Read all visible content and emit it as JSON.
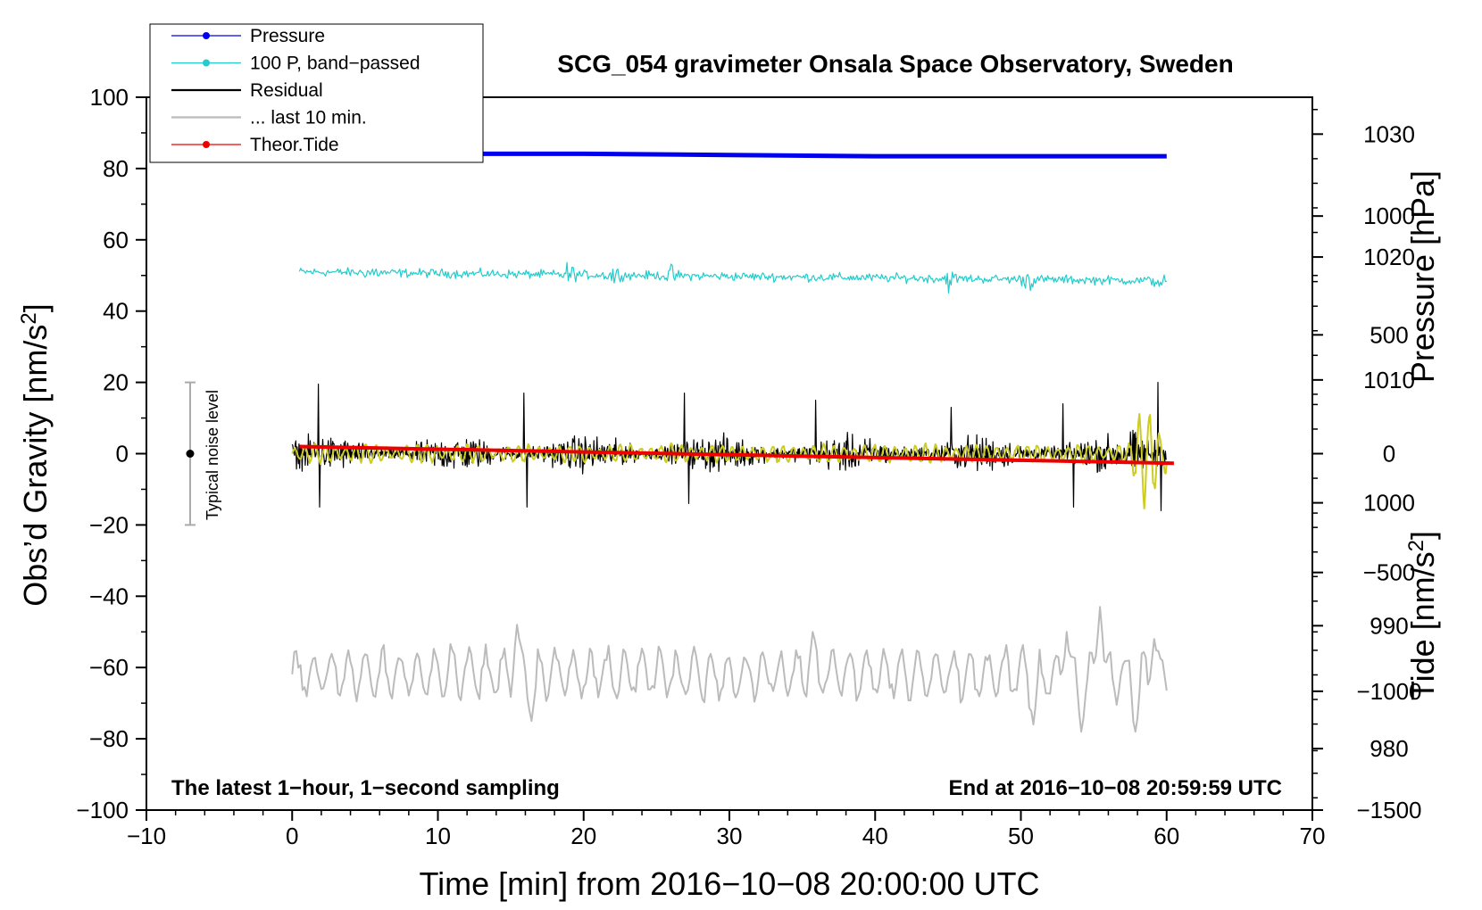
{
  "chart_data": {
    "type": "line",
    "title": "SCG_054 gravimeter Onsala Space Observatory, Sweden",
    "xlabel": "Time [min] from 2016−10−08 20:00:00 UTC",
    "ylabel": "Obs’d Gravity [nm/s",
    "ylabel_sup": "2",
    "ylabel_close": "]",
    "pressure_label": "Pressure [hPa]",
    "tide_label": "Tide [nm/s",
    "tide_label_sup": "2",
    "tide_label_close": "]",
    "xlim": [
      -10,
      70
    ],
    "ylim": [
      -100,
      100
    ],
    "pressure_lim": [
      975,
      1033
    ],
    "tide_lim": [
      -1500,
      1500
    ],
    "x_ticks": [
      -10,
      0,
      10,
      20,
      30,
      40,
      50,
      60,
      70
    ],
    "x_tick_labels": [
      "−10",
      "0",
      "10",
      "20",
      "30",
      "40",
      "50",
      "60",
      "70"
    ],
    "y_ticks": [
      -100,
      -80,
      -60,
      -40,
      -20,
      0,
      20,
      40,
      60,
      80,
      100
    ],
    "y_tick_labels": [
      "−100",
      "−80",
      "−60",
      "−40",
      "−20",
      "0",
      "20",
      "40",
      "60",
      "80",
      "100"
    ],
    "pressure_ticks": [
      980,
      990,
      1000,
      1010,
      1020,
      1030
    ],
    "pressure_tick_labels": [
      "980",
      "990",
      "1000",
      "1010",
      "1020",
      "1030"
    ],
    "tide_ticks": [
      -1500,
      -1000,
      -500,
      0,
      500,
      1000
    ],
    "tide_tick_labels": [
      "−1500",
      "−1000",
      "−500",
      "0",
      "500",
      "1000"
    ],
    "legend": [
      {
        "label": "Pressure",
        "color": "#0000ee",
        "marker": true
      },
      {
        "label": "100 P, band−passed",
        "color": "#22cccc",
        "marker": true
      },
      {
        "label": "Residual",
        "color": "#000000",
        "marker": false
      },
      {
        "label": "... last 10 min.",
        "color": "#bbbbbb",
        "marker": false
      },
      {
        "label": "Theor.Tide",
        "color": "#ee0000",
        "marker": true
      }
    ],
    "note_left": "The latest 1−hour, 1−second sampling",
    "note_right": "End at 2016−10−08 20:59:59 UTC",
    "noise_bar": {
      "label": "Typical noise level",
      "x": -7,
      "y": 0,
      "low": -20,
      "high": 20
    },
    "series": [
      {
        "name": "Pressure",
        "axis": "pressure",
        "color": "#0000ee",
        "x": [
          0,
          10,
          15,
          20,
          30,
          40,
          50,
          60
        ],
        "values": [
          1028.4,
          1028.4,
          1028.4,
          1028.4,
          1028.3,
          1028.2,
          1028.2,
          1028.2
        ]
      },
      {
        "name": "100 P, band−passed",
        "axis": "gravity",
        "color": "#22cccc",
        "x_start": 0.5,
        "x_end": 60,
        "center": 51,
        "center_end": 48.5,
        "amplitude": 1.8,
        "bursts": [
          {
            "x": 5.5,
            "amp": 3
          },
          {
            "x": 19,
            "amp": 4
          },
          {
            "x": 22,
            "amp": 4
          },
          {
            "x": 26,
            "amp": 3
          },
          {
            "x": 45,
            "amp": 4
          },
          {
            "x": 50.5,
            "amp": 4
          },
          {
            "x": 59.5,
            "amp": 3
          }
        ]
      },
      {
        "name": "Residual",
        "axis": "gravity",
        "color": "#000000",
        "x_start": 0,
        "x_end": 60,
        "center": 0,
        "amplitude": 6,
        "spikes": [
          {
            "x": 1.8,
            "y": 19.5
          },
          {
            "x": 1.9,
            "y": -15
          },
          {
            "x": 15.9,
            "y": 17
          },
          {
            "x": 16.1,
            "y": -15
          },
          {
            "x": 26.9,
            "y": 17
          },
          {
            "x": 27.2,
            "y": -14
          },
          {
            "x": 35.9,
            "y": 15
          },
          {
            "x": 45.2,
            "y": 13
          },
          {
            "x": 52.9,
            "y": 14
          },
          {
            "x": 53.6,
            "y": -15
          },
          {
            "x": 59.4,
            "y": 20
          },
          {
            "x": 59.6,
            "y": -16
          }
        ]
      },
      {
        "name": "Residual (smoothed)",
        "axis": "gravity",
        "color": "#cccc22",
        "x_start": 0,
        "x_end": 60,
        "center": 0,
        "amplitude": 3
      },
      {
        "name": "... last 10 min.",
        "axis": "gravity",
        "color": "#bbbbbb",
        "x_start": 0,
        "x_end": 60,
        "center": -62,
        "amplitude": 6,
        "extremes": [
          {
            "x": 15.5,
            "y": -48
          },
          {
            "x": 16.5,
            "y": -75
          },
          {
            "x": 35.7,
            "y": -50
          },
          {
            "x": 50.8,
            "y": -76
          },
          {
            "x": 53.1,
            "y": -50
          },
          {
            "x": 54.2,
            "y": -78
          },
          {
            "x": 55.5,
            "y": -43
          },
          {
            "x": 57.9,
            "y": -78
          },
          {
            "x": 59.2,
            "y": -52
          }
        ]
      },
      {
        "name": "Theor.Tide",
        "axis": "tide",
        "color": "#ee0000",
        "x": [
          0.5,
          60.5
        ],
        "values": [
          30,
          -40
        ]
      }
    ]
  }
}
